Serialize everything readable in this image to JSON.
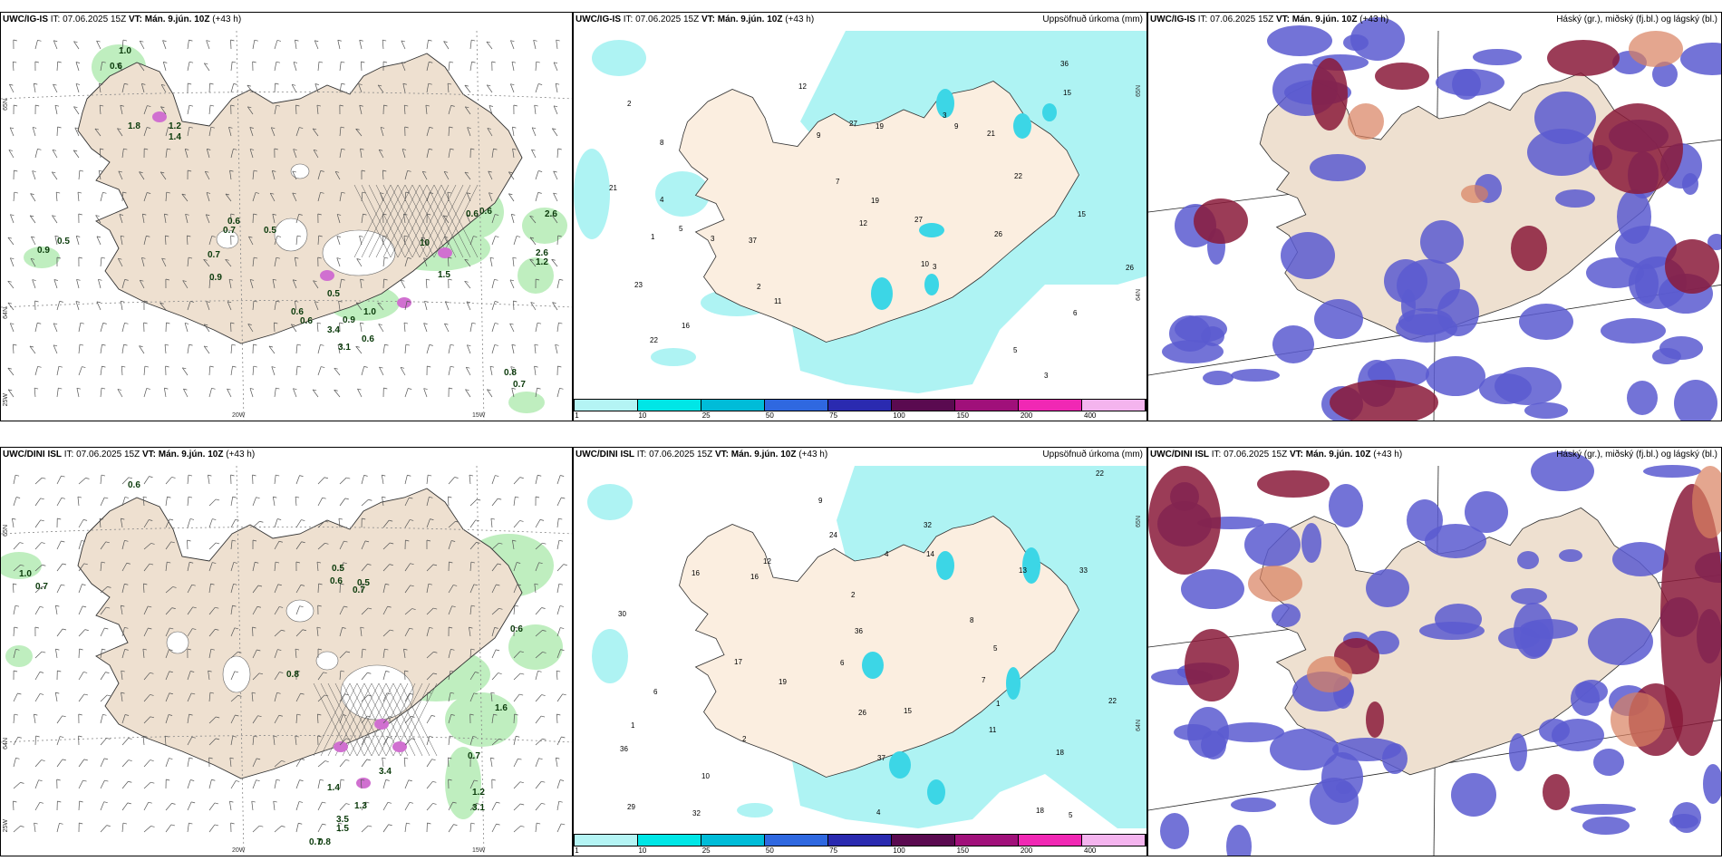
{
  "rows": [
    {
      "model": "UWC/IG-IS",
      "it": "IT: 07.06.2025 15Z",
      "vt_label": "VT:",
      "vt": "Mán. 9.jún. 10Z",
      "lead": "(+43 h)"
    },
    {
      "model": "UWC/DINI ISL",
      "it": "IT: 07.06.2025 15Z",
      "vt_label": "VT:",
      "vt": "Mán. 9.jún. 10Z",
      "lead": "(+43 h)"
    }
  ],
  "titles": {
    "precip": "Uppsöfnuð úrkoma (mm)",
    "cloud": "Háský (gr.), miðský (fj.bl.) og lágský (bl.)"
  },
  "axes": {
    "lat65": "65N",
    "lat64": "64N",
    "lon25": "25W",
    "lon20": "20W",
    "lon15": "15W"
  },
  "legend": {
    "ticks": [
      "1",
      "10",
      "25",
      "50",
      "75",
      "100",
      "150",
      "200",
      "400"
    ],
    "colors": [
      "#b4f4f4",
      "#00e6e6",
      "#00bcd8",
      "#2f68e0",
      "#2a2ab0",
      "#5a0a50",
      "#a0107a",
      "#f028b4",
      "#f4b4ee"
    ]
  },
  "colors": {
    "land": "#eee0d0",
    "precip": "#aef3f3",
    "precip_strong": "#3cd6e6",
    "cloud_high": "#5a5ad0",
    "cloud_mid": "#8a1a3a",
    "cloud_low": "#d88060",
    "wind_green": "#bfeebf",
    "wind_dark": "#0a5a0a"
  },
  "wind_labels_top": [
    "1.0",
    "0.6",
    "1.8",
    "1.2",
    "1.4",
    "0.6",
    "0.6",
    "2.6",
    "0.9",
    "0.5",
    "0.7",
    "0.9",
    "0.6",
    "0.5",
    "0.7",
    "0.6",
    "0.5",
    "0.6",
    "3.4",
    "3.1",
    "0.9",
    "10",
    "1.5",
    "1.0",
    "0.6",
    "2.6",
    "1.2",
    "0.8",
    "0.7"
  ],
  "wind_labels_bottom": [
    "0.6",
    "1.0",
    "0.7",
    "0.5",
    "0.6",
    "0.5",
    "0.7",
    "0.8",
    "0.6",
    "1.6",
    "0.7",
    "3.4",
    "1.4",
    "1.3",
    "3.5",
    "1.5",
    "0.8",
    "0.7",
    "1.2",
    "3.1"
  ],
  "precip_labels_top": [
    "3",
    "5",
    "10",
    "2",
    "6",
    "8",
    "16",
    "37",
    "21",
    "27",
    "9",
    "5",
    "11",
    "12",
    "27",
    "23",
    "26",
    "19",
    "21",
    "22",
    "36",
    "19",
    "22",
    "26",
    "15",
    "4",
    "3",
    "12",
    "7",
    "15",
    "3",
    "1",
    "2",
    "3",
    "9"
  ],
  "precip_labels_bottom": [
    "2",
    "5",
    "1",
    "4",
    "5",
    "6",
    "19",
    "36",
    "18",
    "17",
    "24",
    "16",
    "32",
    "22",
    "18",
    "11",
    "12",
    "10",
    "22",
    "33",
    "37",
    "14",
    "30",
    "32",
    "36",
    "29",
    "26",
    "15",
    "16",
    "13",
    "4",
    "1",
    "9",
    "2",
    "7",
    "8",
    "6"
  ]
}
